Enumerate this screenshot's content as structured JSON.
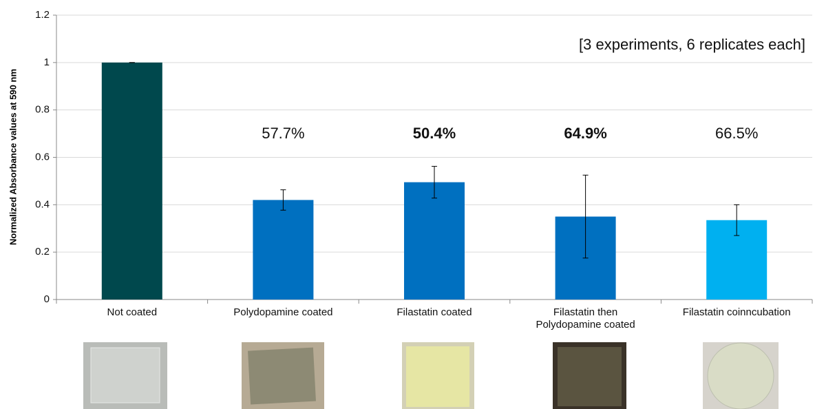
{
  "chart_data": {
    "type": "bar",
    "y_label": "Normalized Absorbance values at 590 nm",
    "note": "[3 experiments, 6 replicates each]",
    "categories": [
      "Not coated",
      "Polydopamine coated",
      "Filastatin coated",
      "Filastatin then\nPolydopamine coated",
      "Filastatin coinncubation"
    ],
    "values": [
      1.0,
      0.42,
      0.495,
      0.35,
      0.335
    ],
    "errors": [
      0,
      0.043,
      0.067,
      0.175,
      0.065
    ],
    "colors": [
      "#00484d",
      "#0070c0",
      "#0070c0",
      "#0070c0",
      "#00b0f0"
    ],
    "percent_labels": [
      null,
      "57.7%",
      "50.4%",
      "64.9%",
      "66.5%"
    ],
    "percent_bold": [
      false,
      false,
      true,
      true,
      false
    ],
    "ylim": [
      0,
      1.2
    ],
    "yticks": [
      0,
      0.2,
      0.4,
      0.6,
      0.8,
      1,
      1.2
    ],
    "grid": true
  }
}
